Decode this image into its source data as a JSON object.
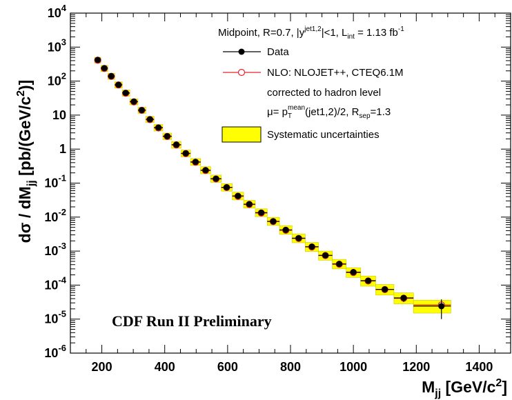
{
  "chart_data": {
    "type": "scatter",
    "xlabel": "M_jj [GeV/c^2]",
    "ylabel": "dσ / dM_jj [pb/(GeV/c^2)]",
    "xlim": [
      100,
      1500
    ],
    "ylim_log10": [
      -6,
      4
    ],
    "log_y": true,
    "x_ticks": [
      200,
      400,
      600,
      800,
      1000,
      1200,
      1400
    ],
    "y_tick_labels": [
      "10^-6",
      "10^-5",
      "10^-4",
      "10^-3",
      "10^-2",
      "10^-1",
      "1",
      "10",
      "10^2",
      "10^3",
      "10^4"
    ],
    "grid": false,
    "legend_position": "top-right",
    "legend": {
      "header": "Midpoint, R=0.7, |y^jet1,2|<1, L_int = 1.13 fb^-1",
      "data": "Data",
      "nlo_line1": "NLO: NLOJET++, CTEQ6.1M",
      "nlo_line2": "corrected to hadron level",
      "scale": "μ= p_T^mean(jet1,2)/2, R_sep=1.3",
      "syst": "Systematic uncertainties"
    },
    "annotation": "CDF Run II Preliminary",
    "colors": {
      "data": "#000000",
      "nlo": "#e8222a",
      "systematic_band": "#ffff00",
      "systematic_border": "#c8c800"
    },
    "series": [
      {
        "name": "Data",
        "marker": "filled-circle",
        "x": [
          187,
          208,
          230,
          253,
          276,
          302,
          327,
          353,
          380,
          408,
          437,
          467,
          498,
          530,
          563,
          597,
          633,
          669,
          707,
          745,
          785,
          826,
          868,
          911,
          955,
          1000,
          1047,
          1100,
          1160,
          1280
        ],
        "y": [
          420,
          240,
          140,
          78,
          45,
          25,
          14,
          7.5,
          4.3,
          2.4,
          1.35,
          0.75,
          0.42,
          0.24,
          0.135,
          0.075,
          0.042,
          0.024,
          0.0135,
          0.0075,
          0.0042,
          0.0024,
          0.00135,
          0.00075,
          0.00042,
          0.00024,
          0.000135,
          7.5e-05,
          4.2e-05,
          2.4e-05
        ],
        "y_err": [
          8,
          5,
          3,
          2,
          1.2,
          0.7,
          0.4,
          0.2,
          0.12,
          0.06,
          0.035,
          0.02,
          0.01,
          0.006,
          0.0035,
          0.002,
          0.0011,
          0.0006,
          0.00035,
          0.0002,
          0.00011,
          6e-05,
          3.5e-05,
          2.5e-05,
          1.6e-05,
          1e-05,
          1.8e-05,
          1.2e-05,
          1e-05,
          1.4e-05
        ],
        "bin_low": [
          177,
          197,
          219,
          241,
          265,
          289,
          315,
          340,
          366,
          394,
          422,
          452,
          482,
          514,
          546,
          580,
          615,
          651,
          688,
          726,
          765,
          805,
          847,
          889,
          933,
          977,
          1023,
          1071,
          1129,
          1191
        ]
      },
      {
        "name": "NLO: NLOJET++, CTEQ6.1M",
        "marker": "open-circle",
        "x": [
          187,
          208,
          230,
          253,
          276,
          302,
          327,
          353,
          380,
          408,
          437,
          467,
          498,
          530,
          563,
          597,
          633,
          669,
          707,
          745,
          785,
          826,
          868,
          911,
          955,
          1000,
          1047,
          1100,
          1160,
          1280
        ],
        "y": [
          410,
          235,
          138,
          77,
          44,
          24.5,
          13.8,
          7.4,
          4.2,
          2.35,
          1.32,
          0.74,
          0.41,
          0.235,
          0.132,
          0.074,
          0.041,
          0.0235,
          0.0132,
          0.0074,
          0.0041,
          0.00235,
          0.00132,
          0.00074,
          0.00041,
          0.000235,
          0.000132,
          7.4e-05,
          4.1e-05,
          2.6e-05
        ]
      }
    ],
    "systematic_band": [
      {
        "x_low": 177,
        "x_high": 197,
        "y_low": 340,
        "y_high": 500
      },
      {
        "x_low": 197,
        "x_high": 219,
        "y_low": 190,
        "y_high": 290
      },
      {
        "x_low": 219,
        "x_high": 241,
        "y_low": 112,
        "y_high": 170
      },
      {
        "x_low": 241,
        "x_high": 265,
        "y_low": 62,
        "y_high": 95
      },
      {
        "x_low": 265,
        "x_high": 289,
        "y_low": 36,
        "y_high": 55
      },
      {
        "x_low": 289,
        "x_high": 315,
        "y_low": 20,
        "y_high": 30
      },
      {
        "x_low": 315,
        "x_high": 340,
        "y_low": 11.2,
        "y_high": 17
      },
      {
        "x_low": 340,
        "x_high": 366,
        "y_low": 6,
        "y_high": 9.2
      },
      {
        "x_low": 366,
        "x_high": 394,
        "y_low": 3.4,
        "y_high": 5.3
      },
      {
        "x_low": 394,
        "x_high": 422,
        "y_low": 1.9,
        "y_high": 2.95
      },
      {
        "x_low": 422,
        "x_high": 452,
        "y_low": 1.06,
        "y_high": 1.68
      },
      {
        "x_low": 452,
        "x_high": 482,
        "y_low": 0.59,
        "y_high": 0.94
      },
      {
        "x_low": 482,
        "x_high": 514,
        "y_low": 0.33,
        "y_high": 0.53
      },
      {
        "x_low": 514,
        "x_high": 546,
        "y_low": 0.188,
        "y_high": 0.305
      },
      {
        "x_low": 546,
        "x_high": 580,
        "y_low": 0.105,
        "y_high": 0.172
      },
      {
        "x_low": 580,
        "x_high": 615,
        "y_low": 0.058,
        "y_high": 0.096
      },
      {
        "x_low": 615,
        "x_high": 651,
        "y_low": 0.032,
        "y_high": 0.054
      },
      {
        "x_low": 651,
        "x_high": 688,
        "y_low": 0.0185,
        "y_high": 0.031
      },
      {
        "x_low": 688,
        "x_high": 726,
        "y_low": 0.0103,
        "y_high": 0.0175
      },
      {
        "x_low": 726,
        "x_high": 765,
        "y_low": 0.0057,
        "y_high": 0.0098
      },
      {
        "x_low": 765,
        "x_high": 805,
        "y_low": 0.0031,
        "y_high": 0.0056
      },
      {
        "x_low": 805,
        "x_high": 847,
        "y_low": 0.00176,
        "y_high": 0.0032
      },
      {
        "x_low": 847,
        "x_high": 889,
        "y_low": 0.00097,
        "y_high": 0.0018
      },
      {
        "x_low": 889,
        "x_high": 933,
        "y_low": 0.00054,
        "y_high": 0.001
      },
      {
        "x_low": 933,
        "x_high": 977,
        "y_low": 0.0003,
        "y_high": 0.00057
      },
      {
        "x_low": 977,
        "x_high": 1023,
        "y_low": 0.000168,
        "y_high": 0.000325
      },
      {
        "x_low": 1023,
        "x_high": 1071,
        "y_low": 9.3e-05,
        "y_high": 0.000185
      },
      {
        "x_low": 1071,
        "x_high": 1129,
        "y_low": 5.1e-05,
        "y_high": 0.000104
      },
      {
        "x_low": 1129,
        "x_high": 1191,
        "y_low": 2.8e-05,
        "y_high": 5.9e-05
      },
      {
        "x_low": 1191,
        "x_high": 1310,
        "y_low": 1.5e-05,
        "y_high": 3.6e-05
      }
    ]
  }
}
